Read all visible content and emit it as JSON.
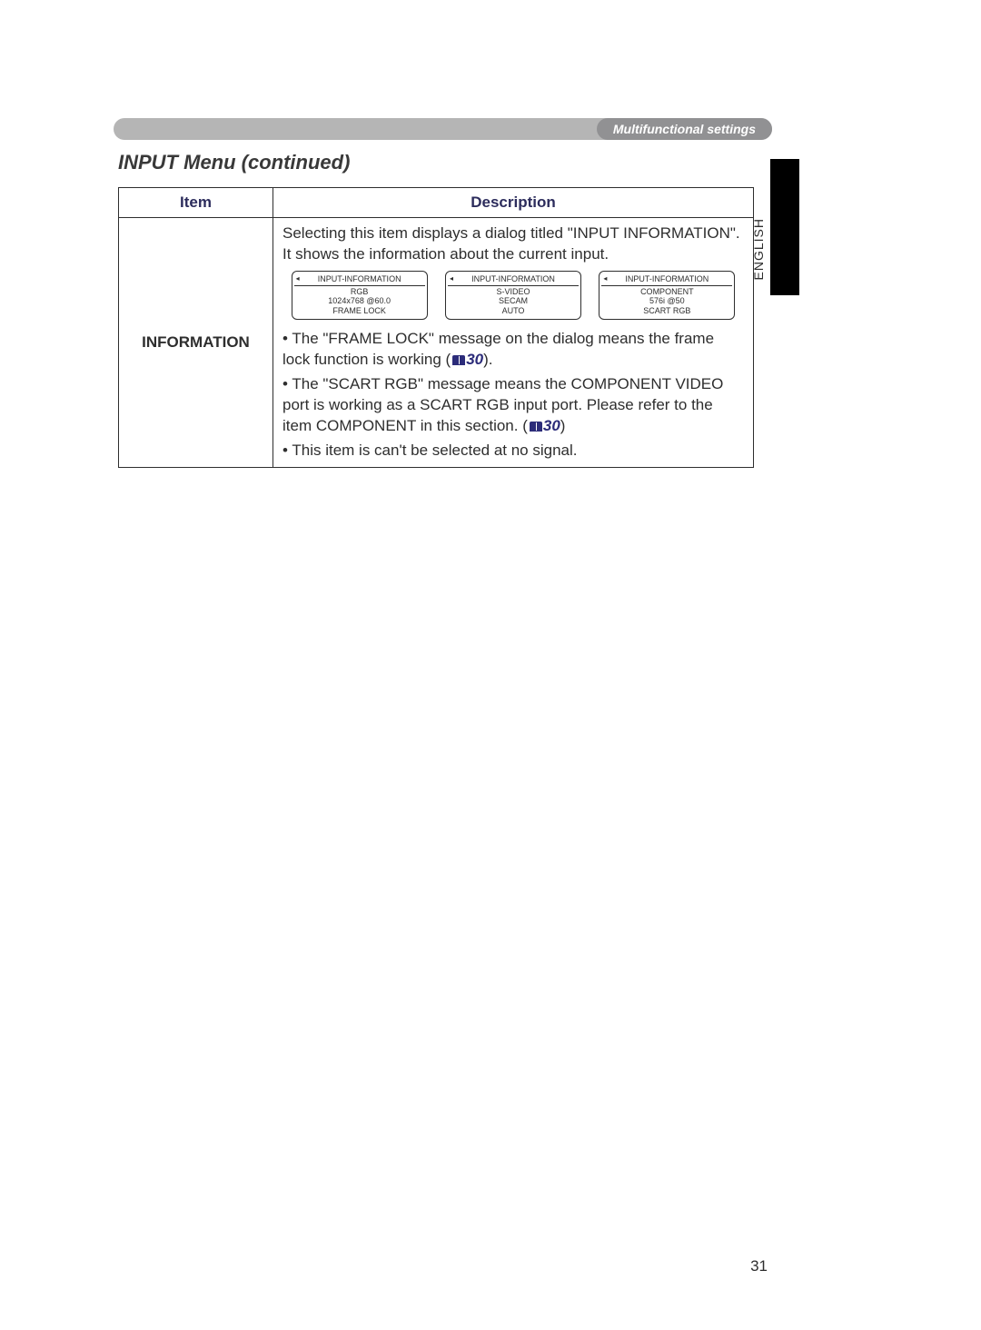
{
  "header": {
    "badge": "Multifunctional settings",
    "language": "ENGLISH"
  },
  "section_title": "INPUT Menu (continued)",
  "table": {
    "headers": {
      "item": "Item",
      "description": "Description"
    },
    "row": {
      "item": "INFORMATION",
      "intro": "Selecting this item displays a dialog titled \"INPUT INFORMATION\". It shows the information about the current input.",
      "dialogs": [
        {
          "title": "INPUT-INFORMATION",
          "l1": "RGB",
          "l2": "1024x768 @60.0",
          "l3": "FRAME LOCK"
        },
        {
          "title": "INPUT-INFORMATION",
          "l1": "S-VIDEO",
          "l2": "SECAM",
          "l3": "AUTO"
        },
        {
          "title": "INPUT-INFORMATION",
          "l1": "COMPONENT",
          "l2": "576i @50",
          "l3": "SCART RGB"
        }
      ],
      "bullet1_a": "• The \"FRAME LOCK\" message on the dialog means the frame lock function is working (",
      "bullet1_ref": "30",
      "bullet1_b": ").",
      "bullet2_a": "• The \"SCART RGB\" message means the COMPONENT VIDEO port is working as a SCART RGB input port. Please refer to the item COMPONENT in this section. (",
      "bullet2_ref": "30",
      "bullet2_b": ")",
      "bullet3": "• This item is can't be selected at no signal."
    }
  },
  "page_number": "31"
}
